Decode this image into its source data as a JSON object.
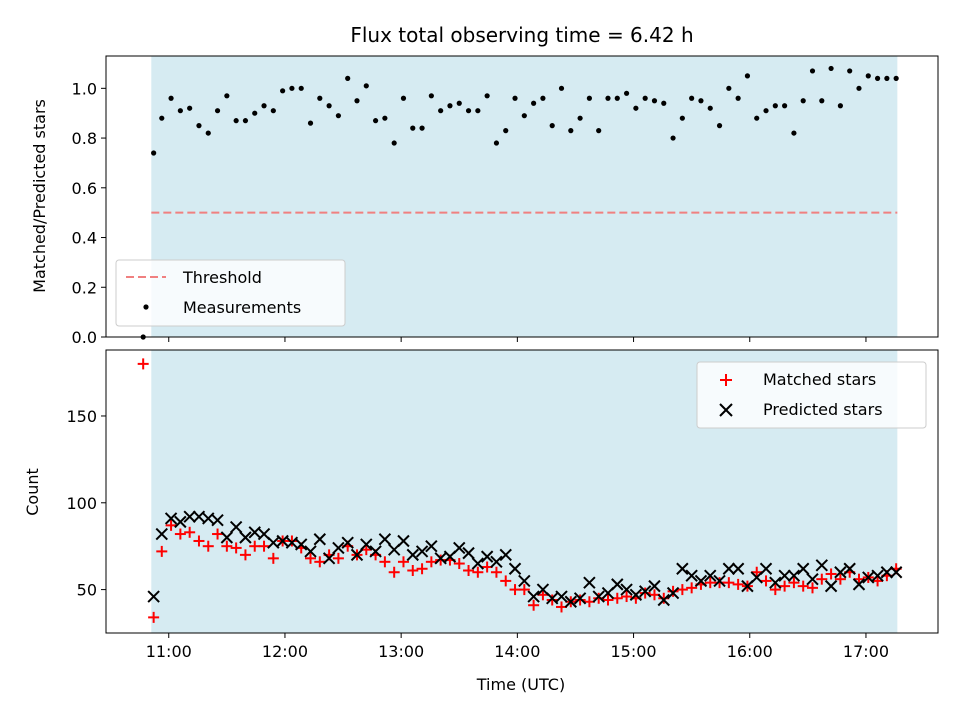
{
  "chart_data": [
    {
      "type": "scatter",
      "title": "Flux total observing time = 6.42 h",
      "xlabel": "",
      "ylabel": "Matched/Predicted stars",
      "xlim": [
        10.46,
        17.62
      ],
      "ylim": [
        0.0,
        1.13
      ],
      "yticks": [
        0.0,
        0.2,
        0.4,
        0.6,
        0.8,
        1.0
      ],
      "ytick_labels": [
        "0.0",
        "0.2",
        "0.4",
        "0.6",
        "0.8",
        "1.0"
      ],
      "observing_window": [
        10.85,
        17.27
      ],
      "colors": {
        "band": "#add8e6",
        "threshold": "#f08080",
        "points": "#000000"
      },
      "legend": {
        "placement": "lower-left",
        "threshold_label": "Threshold",
        "points_label": "Measurements"
      },
      "threshold": {
        "name": "Threshold",
        "value": 0.5,
        "x": [
          10.85,
          17.27
        ]
      },
      "series": [
        {
          "name": "Measurements",
          "x": [
            10.78,
            10.87,
            10.94,
            11.02,
            11.1,
            11.18,
            11.26,
            11.34,
            11.42,
            11.5,
            11.58,
            11.66,
            11.74,
            11.82,
            11.9,
            11.98,
            12.06,
            12.14,
            12.22,
            12.3,
            12.38,
            12.46,
            12.54,
            12.62,
            12.7,
            12.78,
            12.86,
            12.94,
            13.02,
            13.1,
            13.18,
            13.26,
            13.34,
            13.42,
            13.5,
            13.58,
            13.66,
            13.74,
            13.82,
            13.9,
            13.98,
            14.06,
            14.14,
            14.22,
            14.3,
            14.38,
            14.46,
            14.54,
            14.62,
            14.7,
            14.78,
            14.86,
            14.94,
            15.02,
            15.1,
            15.18,
            15.26,
            15.34,
            15.42,
            15.5,
            15.58,
            15.66,
            15.74,
            15.82,
            15.9,
            15.98,
            16.06,
            16.14,
            16.22,
            16.3,
            16.38,
            16.46,
            16.54,
            16.62,
            16.7,
            16.78,
            16.86,
            16.94,
            17.02,
            17.1,
            17.18,
            17.26
          ],
          "y": [
            0.0,
            0.74,
            0.88,
            0.96,
            0.91,
            0.92,
            0.85,
            0.82,
            0.91,
            0.97,
            0.87,
            0.87,
            0.9,
            0.93,
            0.91,
            0.99,
            1.0,
            1.0,
            0.86,
            0.96,
            0.93,
            0.89,
            1.04,
            0.95,
            1.01,
            0.87,
            0.88,
            0.78,
            0.96,
            0.84,
            0.84,
            0.97,
            0.91,
            0.93,
            0.94,
            0.91,
            0.91,
            0.97,
            0.78,
            0.83,
            0.96,
            0.89,
            0.94,
            0.96,
            0.85,
            1.0,
            0.83,
            0.88,
            0.96,
            0.83,
            0.96,
            0.96,
            0.98,
            0.92,
            0.96,
            0.95,
            0.94,
            0.8,
            0.88,
            0.96,
            0.95,
            0.92,
            0.85,
            1.0,
            0.96,
            1.05,
            0.88,
            0.91,
            0.93,
            0.93,
            0.82,
            0.95,
            1.07,
            0.95,
            1.08,
            0.93,
            1.07,
            1.0,
            1.05,
            1.04,
            1.04,
            1.04
          ]
        }
      ]
    },
    {
      "type": "scatter",
      "title": "",
      "xlabel": "Time (UTC)",
      "ylabel": "Count",
      "xlim": [
        10.46,
        17.62
      ],
      "ylim": [
        25,
        188
      ],
      "yticks": [
        50,
        100,
        150
      ],
      "ytick_labels": [
        "50",
        "100",
        "150"
      ],
      "xticks": [
        11,
        12,
        13,
        14,
        15,
        16,
        17
      ],
      "xtick_labels": [
        "11:00",
        "12:00",
        "13:00",
        "14:00",
        "15:00",
        "16:00",
        "17:00"
      ],
      "observing_window": [
        10.85,
        17.27
      ],
      "colors": {
        "band": "#add8e6",
        "matched": "#ff0000",
        "predicted": "#000000"
      },
      "legend": {
        "placement": "upper-right",
        "matched_label": "Matched stars",
        "predicted_label": "Predicted stars"
      },
      "series": [
        {
          "name": "Matched stars",
          "marker": "plus",
          "x": [
            10.78,
            10.87,
            10.94,
            11.02,
            11.1,
            11.18,
            11.26,
            11.34,
            11.42,
            11.5,
            11.58,
            11.66,
            11.74,
            11.82,
            11.9,
            11.98,
            12.06,
            12.14,
            12.22,
            12.3,
            12.38,
            12.46,
            12.54,
            12.62,
            12.7,
            12.78,
            12.86,
            12.94,
            13.02,
            13.1,
            13.18,
            13.26,
            13.34,
            13.42,
            13.5,
            13.58,
            13.66,
            13.74,
            13.82,
            13.9,
            13.98,
            14.06,
            14.14,
            14.22,
            14.3,
            14.38,
            14.46,
            14.54,
            14.62,
            14.7,
            14.78,
            14.86,
            14.94,
            15.02,
            15.1,
            15.18,
            15.26,
            15.34,
            15.42,
            15.5,
            15.58,
            15.66,
            15.74,
            15.82,
            15.9,
            15.98,
            16.06,
            16.14,
            16.22,
            16.3,
            16.38,
            16.46,
            16.54,
            16.62,
            16.7,
            16.78,
            16.86,
            16.94,
            17.02,
            17.1,
            17.18,
            17.26
          ],
          "y": [
            180,
            34,
            72,
            87,
            82,
            83,
            78,
            75,
            82,
            75,
            74,
            70,
            75,
            75,
            68,
            78,
            78,
            74,
            68,
            66,
            70,
            68,
            75,
            70,
            73,
            70,
            66,
            60,
            66,
            61,
            62,
            66,
            67,
            67,
            65,
            61,
            60,
            63,
            60,
            55,
            50,
            50,
            41,
            47,
            44,
            40,
            43,
            44,
            43,
            45,
            44,
            45,
            46,
            45,
            48,
            47,
            45,
            49,
            50,
            51,
            53,
            54,
            54,
            54,
            53,
            52,
            60,
            55,
            50,
            52,
            54,
            52,
            51,
            56,
            59,
            56,
            60,
            56,
            57,
            55,
            58,
            62
          ]
        },
        {
          "name": "Predicted stars",
          "marker": "x",
          "x": [
            10.78,
            10.87,
            10.94,
            11.02,
            11.1,
            11.18,
            11.26,
            11.34,
            11.42,
            11.5,
            11.58,
            11.66,
            11.74,
            11.82,
            11.9,
            11.98,
            12.06,
            12.14,
            12.22,
            12.3,
            12.38,
            12.46,
            12.54,
            12.62,
            12.7,
            12.78,
            12.86,
            12.94,
            13.02,
            13.1,
            13.18,
            13.26,
            13.34,
            13.42,
            13.5,
            13.58,
            13.66,
            13.74,
            13.82,
            13.9,
            13.98,
            14.06,
            14.14,
            14.22,
            14.3,
            14.38,
            14.46,
            14.54,
            14.62,
            14.7,
            14.78,
            14.86,
            14.94,
            15.02,
            15.1,
            15.18,
            15.26,
            15.34,
            15.42,
            15.5,
            15.58,
            15.66,
            15.74,
            15.82,
            15.9,
            15.98,
            16.06,
            16.14,
            16.22,
            16.3,
            16.38,
            16.46,
            16.54,
            16.62,
            16.7,
            16.78,
            16.86,
            16.94,
            17.02,
            17.1,
            17.18,
            17.26
          ],
          "y": [
            null,
            46,
            82,
            91,
            89,
            92,
            92,
            91,
            90,
            80,
            86,
            80,
            83,
            82,
            77,
            78,
            77,
            76,
            72,
            79,
            68,
            74,
            77,
            70,
            76,
            72,
            79,
            73,
            78,
            70,
            72,
            75,
            68,
            69,
            74,
            71,
            65,
            69,
            66,
            70,
            62,
            55,
            46,
            50,
            45,
            46,
            43,
            45,
            54,
            46,
            48,
            53,
            50,
            47,
            49,
            52,
            44,
            48,
            62,
            58,
            55,
            58,
            55,
            62,
            62,
            52,
            57,
            62,
            54,
            58,
            58,
            62,
            56,
            64,
            52,
            60,
            62,
            53,
            57,
            58,
            60,
            60
          ]
        }
      ]
    }
  ]
}
